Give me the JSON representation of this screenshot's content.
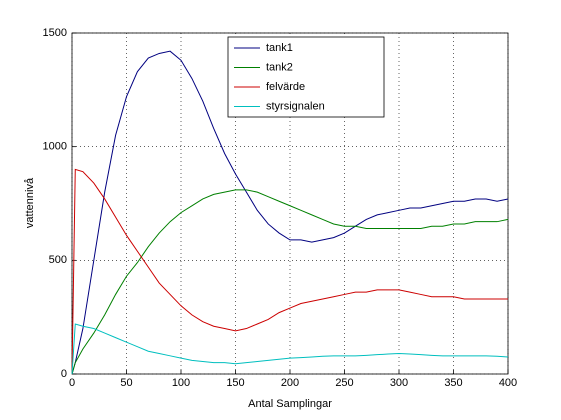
{
  "chart_data": {
    "type": "line",
    "xlabel": "Antal Samplingar",
    "ylabel": "vattennivå",
    "x": [
      0,
      3,
      10,
      20,
      30,
      40,
      50,
      60,
      70,
      80,
      90,
      100,
      110,
      120,
      130,
      140,
      150,
      160,
      170,
      180,
      190,
      200,
      210,
      220,
      230,
      240,
      250,
      260,
      270,
      280,
      290,
      300,
      310,
      320,
      330,
      340,
      350,
      360,
      370,
      380,
      390,
      400
    ],
    "series": [
      {
        "name": "tank1",
        "color": "#000080",
        "values": [
          0,
          50,
          200,
          500,
          800,
          1050,
          1220,
          1330,
          1390,
          1410,
          1420,
          1380,
          1300,
          1200,
          1080,
          970,
          880,
          800,
          720,
          660,
          620,
          590,
          590,
          580,
          590,
          600,
          620,
          650,
          680,
          700,
          710,
          720,
          730,
          730,
          740,
          750,
          760,
          760,
          770,
          770,
          760,
          770
        ]
      },
      {
        "name": "tank2",
        "color": "#008000",
        "values": [
          0,
          50,
          110,
          180,
          260,
          350,
          430,
          490,
          560,
          620,
          670,
          710,
          740,
          770,
          790,
          800,
          810,
          810,
          800,
          780,
          760,
          740,
          720,
          700,
          680,
          660,
          650,
          650,
          640,
          640,
          640,
          640,
          640,
          640,
          650,
          650,
          660,
          660,
          670,
          670,
          670,
          680
        ]
      },
      {
        "name": "felvärde",
        "color": "#cc0000",
        "values": [
          0,
          900,
          890,
          840,
          770,
          690,
          610,
          540,
          470,
          400,
          350,
          300,
          260,
          230,
          210,
          200,
          190,
          200,
          220,
          240,
          270,
          290,
          310,
          320,
          330,
          340,
          350,
          360,
          360,
          370,
          370,
          370,
          360,
          350,
          340,
          340,
          340,
          330,
          330,
          330,
          330,
          330
        ]
      },
      {
        "name": "styrsignalen",
        "color": "#00bfbf",
        "values": [
          0,
          220,
          210,
          200,
          180,
          160,
          140,
          120,
          100,
          90,
          80,
          70,
          60,
          55,
          50,
          50,
          45,
          50,
          55,
          60,
          65,
          70,
          72,
          75,
          78,
          80,
          80,
          80,
          82,
          85,
          88,
          90,
          88,
          85,
          82,
          80,
          80,
          80,
          80,
          80,
          78,
          75
        ]
      }
    ],
    "xlim": [
      0,
      400
    ],
    "xticks": [
      0,
      50,
      100,
      150,
      200,
      250,
      300,
      350,
      400
    ],
    "ylim": [
      0,
      1500
    ],
    "yticks": [
      0,
      500,
      1000,
      1500
    ],
    "grid": true,
    "legend": "top"
  }
}
